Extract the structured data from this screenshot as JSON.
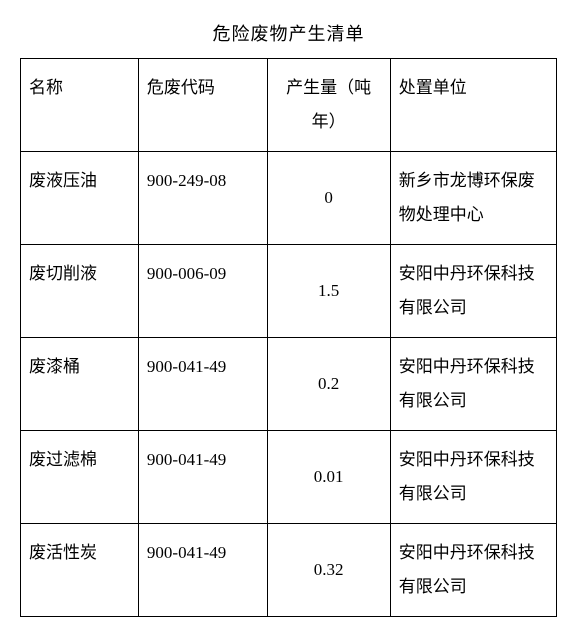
{
  "title": "危险废物产生清单",
  "table": {
    "columns": [
      {
        "label": "名称",
        "class": "col-name"
      },
      {
        "label": "危废代码",
        "class": "col-code"
      },
      {
        "label": "产生量（吨年）",
        "class": "col-amount"
      },
      {
        "label": "处置单位",
        "class": "col-unit"
      }
    ],
    "rows": [
      {
        "name": "废液压油",
        "code": "900-249-08",
        "amount": "0",
        "unit": "新乡市龙博环保废物处理中心"
      },
      {
        "name": "废切削液",
        "code": "900-006-09",
        "amount": "1.5",
        "unit": "安阳中丹环保科技有限公司"
      },
      {
        "name": "废漆桶",
        "code": "900-041-49",
        "amount": "0.2",
        "unit": "安阳中丹环保科技有限公司"
      },
      {
        "name": "废过滤棉",
        "code": "900-041-49",
        "amount": "0.01",
        "unit": "安阳中丹环保科技有限公司"
      },
      {
        "name": "废活性炭",
        "code": "900-041-49",
        "amount": "0.32",
        "unit": "安阳中丹环保科技有限公司"
      }
    ]
  },
  "colors": {
    "text": "#000000",
    "border": "#000000",
    "background": "#ffffff"
  },
  "typography": {
    "title_fontsize": 18,
    "cell_fontsize": 17,
    "font_family": "SimSun"
  }
}
